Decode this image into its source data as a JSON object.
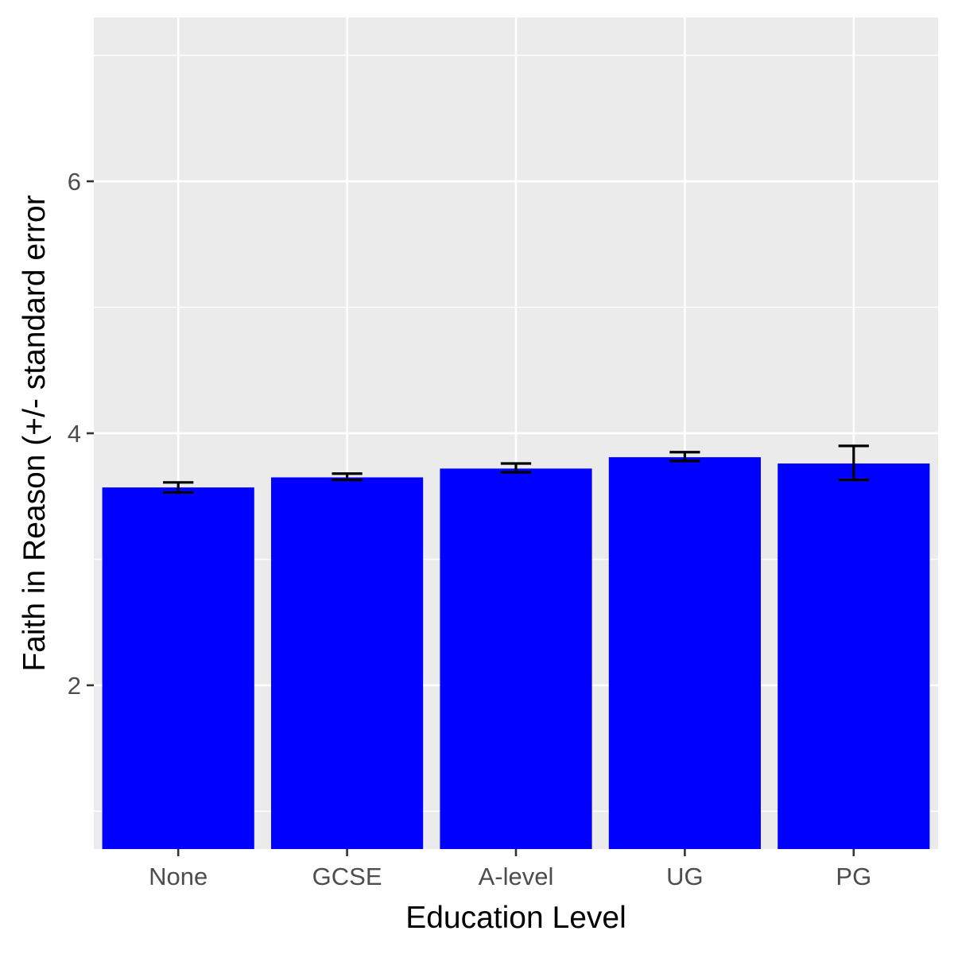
{
  "chart_data": {
    "type": "bar",
    "title": "",
    "xlabel": "Education Level",
    "ylabel": "Faith in Reason (+/- standard error",
    "categories": [
      "None",
      "GCSE",
      "A-level",
      "UG",
      "PG"
    ],
    "values": [
      3.57,
      3.65,
      3.72,
      3.81,
      3.76
    ],
    "error_bars": {
      "lower": [
        3.53,
        3.63,
        3.69,
        3.78,
        3.63
      ],
      "upper": [
        3.61,
        3.68,
        3.76,
        3.85,
        3.9
      ]
    },
    "ylim": [
      0.7,
      7.3
    ],
    "yticks": [
      2,
      4,
      6
    ],
    "ytick_labels": [
      "2",
      "4",
      "6"
    ],
    "grid": true,
    "legend": "none",
    "colors": {
      "bar": "#0000ff",
      "panel_background": "#ebebeb",
      "grid": "#ffffff",
      "error_bar": "#000000"
    }
  }
}
